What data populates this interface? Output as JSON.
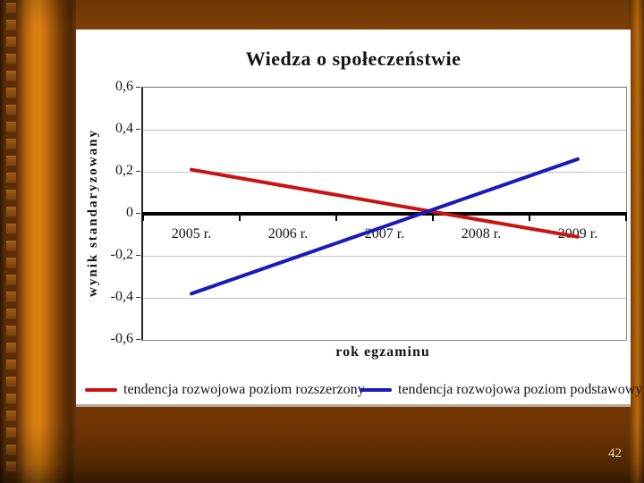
{
  "slide": {
    "page_number": "42",
    "colors": {
      "background_brown": "#773b05",
      "bar_orange": "#d67c10",
      "bar_dark": "#4f2808",
      "page_number_text": "#e8ddb0"
    }
  },
  "chart": {
    "title": "Wiedza o społeczeństwie",
    "x_axis_label": "rok egzaminu",
    "y_axis_label": "wynik standaryzowany",
    "y_tick_labels": [
      "0,6",
      "0,4",
      "0,2",
      "0",
      "-0,2",
      "-0,4",
      "-0,6"
    ],
    "legend": [
      {
        "label": "tendencja rozwojowa poziom rozszerzony",
        "color": "#c81414"
      },
      {
        "label": "tendencja rozwojowa poziom podstawowy",
        "color": "#1a1ab9"
      }
    ]
  },
  "chart_data": {
    "type": "line",
    "title": "Wiedza o społeczeństwie",
    "xlabel": "rok egzaminu",
    "ylabel": "wynik standaryzowany",
    "categories": [
      "2005 r.",
      "2006 r.",
      "2007 r.",
      "2008 r.",
      "2009 r."
    ],
    "series": [
      {
        "name": "tendencja rozwojowa poziom rozszerzony",
        "color": "#c81414",
        "values": [
          0.21,
          0.13,
          0.05,
          -0.03,
          -0.11
        ]
      },
      {
        "name": "tendencja rozwojowa poziom podstawowy",
        "color": "#1a1ab9",
        "values": [
          -0.38,
          -0.22,
          -0.06,
          0.1,
          0.26
        ]
      }
    ],
    "ylim": [
      -0.6,
      0.6
    ],
    "ytick_step": 0.2,
    "grid": true,
    "legend_position": "bottom"
  }
}
